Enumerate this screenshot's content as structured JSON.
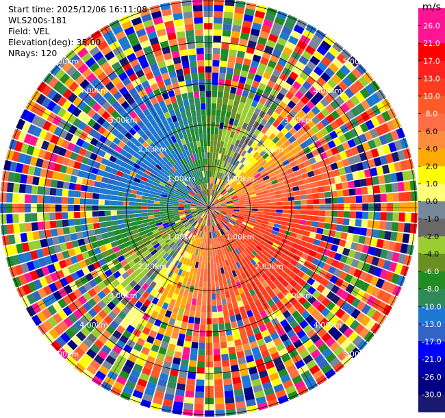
{
  "header": {
    "start_time": "Start time: 2025/12/06 16:11:08",
    "instrument": "WLS200s-181",
    "field": "Field: VEL",
    "elevation": "Elevation(deg): 35.00",
    "nrays": "NRays: 120"
  },
  "chart_data": {
    "type": "ppi-radial-velocity",
    "field": "VEL",
    "elevation_deg": 35.0,
    "n_rays": 120,
    "range_rings_km": [
      1.0,
      2.0,
      3.0,
      4.0,
      5.0
    ],
    "ring_labels": [
      "1.00km",
      "2.00km",
      "3.00km",
      "4.00km",
      "5.00km"
    ],
    "max_range_km": 5.05,
    "colorbar": {
      "unit": "m/s",
      "tick_labels": [
        "26.0",
        "21.0",
        "17.0",
        "13.0",
        "10.0",
        "8.0",
        "6.0",
        "4.0",
        "2.0",
        "1.0",
        "0.0",
        "-1.0",
        "-2.0",
        "-4.0",
        "-6.0",
        "-8.0",
        "-10.0",
        "-13.0",
        "-17.0",
        "-21.0",
        "-26.0",
        "-30.0"
      ],
      "colors": [
        "#ff1493",
        "#ff1493",
        "#ff0000",
        "#ff2020",
        "#ff3c1e",
        "#ff5a28",
        "#ff6e46",
        "#ff8c3c",
        "#ffaa00",
        "#ffff00",
        "#ffff78",
        "#778899",
        "#696969",
        "#9acd32",
        "#6b8e23",
        "#228b22",
        "#2e8b57",
        "#1e78d2",
        "#3264c8",
        "#0000ff",
        "#0000aa",
        "#000080",
        "#191970"
      ]
    },
    "velocity_pattern": "dipole: positive (red/orange) toward east and south, negative (blue/green) toward west and north; far range dominated by noise"
  }
}
